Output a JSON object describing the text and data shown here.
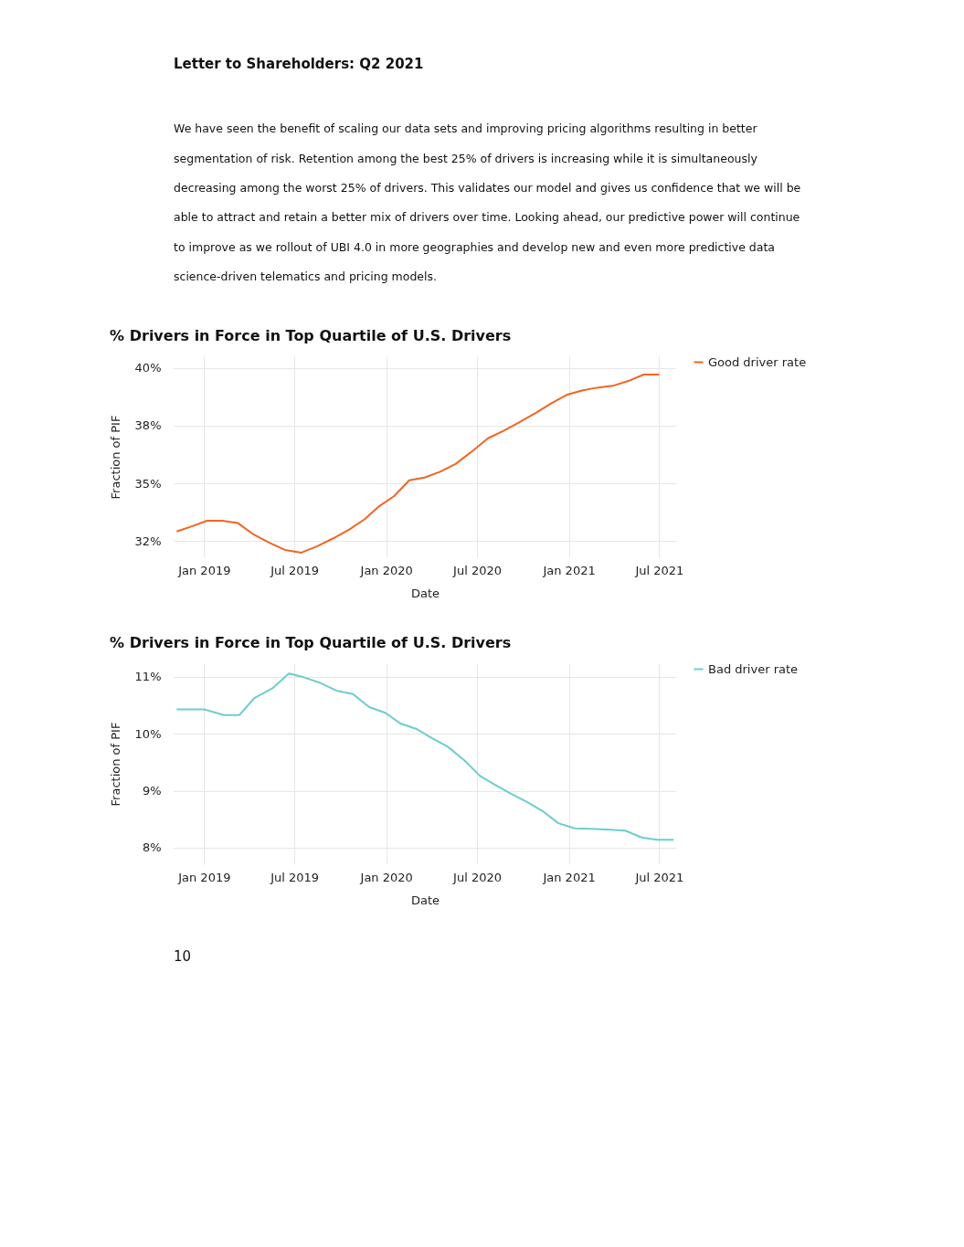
{
  "chart_data": [
    {
      "type": "line",
      "title": "% Drivers in Force in Top Quartile of U.S. Drivers",
      "xlabel": "Date",
      "ylabel": "Fraction of PIF",
      "annotations": [
        "Letter to Shareholders: Q2 2021",
        "We have seen the benefit of scaling our data sets and improving pricing algorithms resulting in better",
        "segmentation of risk. Retention among the best 25% of drivers is increasing while it is simultaneously",
        "decreasing among the worst 25% of drivers. This validates our model and gives us confidence that we will be",
        "able to attract and retain a better mix of drivers over time. Looking ahead, our predictive power will continue",
        "to improve as we rollout of UBI 4.0 in more geographies and develop new and even more predictive data",
        "science-driven telematics and pricing models."
      ],
      "x": [
        "2018-11-07",
        "2018-12-09",
        "2019-01-07",
        "2019-02-07",
        "2019-03-10",
        "2019-04-10",
        "2019-05-11",
        "2019-06-12",
        "2019-07-15",
        "2019-08-15",
        "2019-09-16",
        "2019-10-19",
        "2019-11-19",
        "2019-12-18",
        "2020-01-17",
        "2020-02-16",
        "2020-03-18",
        "2020-04-18",
        "2020-05-19",
        "2020-06-20",
        "2020-07-23",
        "2020-08-23",
        "2020-09-24",
        "2020-10-27",
        "2020-11-27",
        "2020-12-29",
        "2021-01-29",
        "2021-02-26",
        "2021-03-30",
        "2021-04-30",
        "2021-05-31",
        "2021-07-01"
      ],
      "series": [
        {
          "name": "Good driver rate",
          "color": "#f26522",
          "values": [
            32.92,
            33.15,
            33.38,
            33.38,
            33.28,
            32.79,
            32.44,
            32.12,
            32.0,
            32.27,
            32.61,
            33.0,
            33.45,
            34.01,
            34.45,
            35.13,
            35.25,
            35.5,
            35.84,
            36.37,
            36.95,
            37.27,
            37.65,
            38.05,
            38.47,
            38.84,
            39.03,
            39.14,
            39.22,
            39.43,
            39.71,
            39.71
          ]
        }
      ],
      "xlim": [
        "2018-11-01",
        "2021-08-04"
      ],
      "xticks": [
        {
          "value": "2019-01-01",
          "label": "Jan 2019"
        },
        {
          "value": "2019-07-01",
          "label": "Jul 2019"
        },
        {
          "value": "2020-01-01",
          "label": "Jan 2020"
        },
        {
          "value": "2020-07-01",
          "label": "Jul 2020"
        },
        {
          "value": "2021-01-01",
          "label": "Jan 2021"
        },
        {
          "value": "2021-07-01",
          "label": "Jul 2021"
        }
      ],
      "ylim": [
        31.8,
        40.5
      ],
      "yticks": [
        {
          "value": 32.5,
          "label": "32%"
        },
        {
          "value": 35,
          "label": "35%"
        },
        {
          "value": 37.5,
          "label": "38%"
        },
        {
          "value": 40,
          "label": "40%"
        }
      ],
      "grid": true,
      "legend": "top right",
      "marker": "none",
      "line_style": "solid"
    },
    {
      "type": "line",
      "title": "% Drivers in Force in Top Quartile of U.S. Drivers",
      "xlabel": "Date",
      "ylabel": "Fraction of PIF",
      "annotations": [
        "10"
      ],
      "x": [
        "2018-11-07",
        "2019-01-01",
        "2019-02-10",
        "2019-03-13",
        "2019-04-12",
        "2019-05-18",
        "2019-06-20",
        "2019-07-21",
        "2019-08-23",
        "2019-09-23",
        "2019-10-26",
        "2019-11-28",
        "2019-12-30",
        "2020-01-30",
        "2020-03-03",
        "2020-04-03",
        "2020-05-04",
        "2020-06-06",
        "2020-07-07",
        "2020-08-07",
        "2020-09-09",
        "2020-10-10",
        "2020-11-10",
        "2020-12-11",
        "2021-01-13",
        "2021-02-13",
        "2021-03-18",
        "2021-04-24",
        "2021-05-27",
        "2021-06-27",
        "2021-07-30"
      ],
      "series": [
        {
          "name": "Bad driver rate",
          "color": "#6ecdcd",
          "values": [
            10.43,
            10.43,
            10.33,
            10.33,
            10.63,
            10.8,
            11.06,
            10.99,
            10.89,
            10.76,
            10.7,
            10.47,
            10.37,
            10.18,
            10.08,
            9.92,
            9.77,
            9.53,
            9.26,
            9.1,
            8.94,
            8.8,
            8.64,
            8.43,
            8.34,
            8.33,
            8.32,
            8.3,
            8.18,
            8.14,
            8.14
          ]
        }
      ],
      "xlim": [
        "2018-11-01",
        "2021-08-04"
      ],
      "xticks": [
        {
          "value": "2019-01-01",
          "label": "Jan 2019"
        },
        {
          "value": "2019-07-01",
          "label": "Jul 2019"
        },
        {
          "value": "2020-01-01",
          "label": "Jan 2020"
        },
        {
          "value": "2020-07-01",
          "label": "Jul 2020"
        },
        {
          "value": "2021-01-01",
          "label": "Jan 2021"
        },
        {
          "value": "2021-07-01",
          "label": "Jul 2021"
        }
      ],
      "ylim": [
        7.71,
        11.24
      ],
      "yticks": [
        {
          "value": 8,
          "label": "8%"
        },
        {
          "value": 9,
          "label": "9%"
        },
        {
          "value": 10,
          "label": "10%"
        },
        {
          "value": 11,
          "label": "11%"
        }
      ],
      "grid": true,
      "legend": "top right",
      "marker": "none",
      "line_style": "solid"
    }
  ]
}
